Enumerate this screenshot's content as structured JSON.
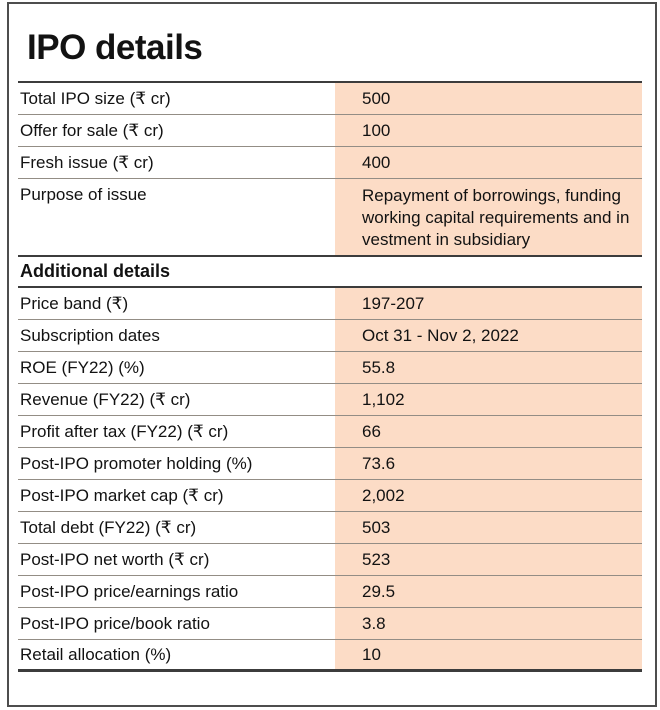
{
  "title": "IPO details",
  "colors": {
    "highlight": "#fcdcc6",
    "rule_dark": "#3c3c3c",
    "rule_light": "#938d85",
    "text": "#121212"
  },
  "chart_data": {
    "type": "table",
    "title": "IPO details",
    "columns": [
      "Field",
      "Value"
    ],
    "main_rows": [
      {
        "label": "Total IPO size (₹ cr)",
        "value": "500"
      },
      {
        "label": "Offer for sale (₹ cr)",
        "value": "100"
      },
      {
        "label": "Fresh issue (₹ cr)",
        "value": "400"
      },
      {
        "label": "Purpose of issue",
        "value": "Repayment of borrowings, funding\nworking capital requirements and in\nvestment in subsidiary"
      }
    ],
    "section_header": "Additional details",
    "additional_rows": [
      {
        "label": "Price band (₹)",
        "value": "197-207"
      },
      {
        "label": "Subscription dates",
        "value": "Oct 31 - Nov 2, 2022"
      },
      {
        "label": "ROE (FY22) (%)",
        "value": "55.8"
      },
      {
        "label": "Revenue (FY22) (₹ cr)",
        "value": "1,102"
      },
      {
        "label": "Profit after tax (FY22) (₹ cr)",
        "value": "66"
      },
      {
        "label": "Post-IPO promoter holding (%)",
        "value": "73.6"
      },
      {
        "label": "Post-IPO market cap (₹ cr)",
        "value": "2,002"
      },
      {
        "label": "Total debt (FY22) (₹ cr)",
        "value": "503"
      },
      {
        "label": "Post-IPO net worth (₹ cr)",
        "value": "523"
      },
      {
        "label": "Post-IPO price/earnings ratio",
        "value": "29.5"
      },
      {
        "label": "Post-IPO price/book ratio",
        "value": "3.8"
      },
      {
        "label": "Retail allocation (%)",
        "value": "10"
      }
    ]
  }
}
